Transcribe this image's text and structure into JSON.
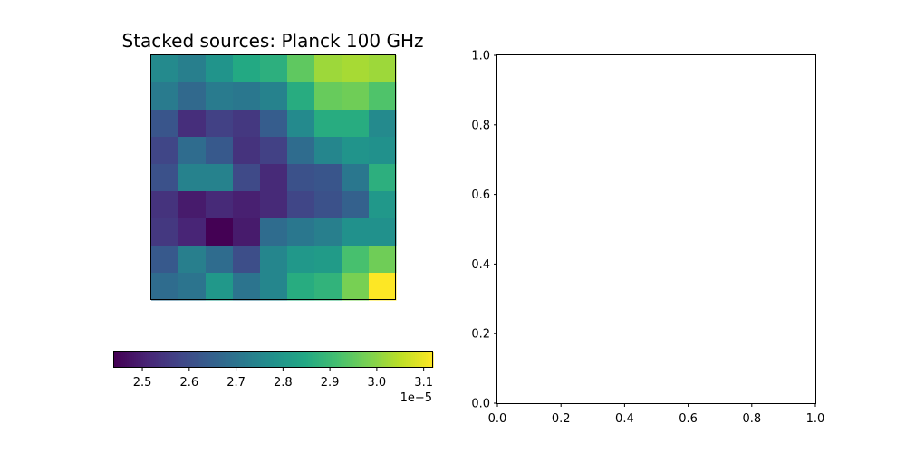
{
  "chart_data": [
    {
      "type": "heatmap",
      "title": "Stacked sources: Planck 100 GHz",
      "rows": 9,
      "cols": 9,
      "values": [
        [
          2.76,
          2.73,
          2.79,
          2.85,
          2.87,
          2.95,
          3.02,
          3.03,
          3.02
        ],
        [
          2.72,
          2.67,
          2.72,
          2.71,
          2.74,
          2.86,
          2.96,
          2.97,
          2.93
        ],
        [
          2.62,
          2.53,
          2.57,
          2.55,
          2.64,
          2.76,
          2.86,
          2.86,
          2.76
        ],
        [
          2.58,
          2.68,
          2.63,
          2.54,
          2.57,
          2.68,
          2.75,
          2.79,
          2.78
        ],
        [
          2.61,
          2.74,
          2.74,
          2.59,
          2.52,
          2.61,
          2.62,
          2.71,
          2.87
        ],
        [
          2.54,
          2.49,
          2.52,
          2.5,
          2.52,
          2.58,
          2.61,
          2.65,
          2.8
        ],
        [
          2.55,
          2.51,
          2.44,
          2.49,
          2.68,
          2.71,
          2.73,
          2.78,
          2.78
        ],
        [
          2.63,
          2.73,
          2.68,
          2.6,
          2.75,
          2.8,
          2.81,
          2.92,
          2.97
        ],
        [
          2.68,
          2.7,
          2.8,
          2.7,
          2.75,
          2.86,
          2.88,
          2.98,
          3.12
        ]
      ],
      "value_scale": "1e-5",
      "colorbar": {
        "orientation": "horizontal",
        "colormap": "viridis",
        "range": [
          2.44,
          3.12
        ],
        "ticks": [
          "2.5",
          "2.6",
          "2.7",
          "2.8",
          "2.9",
          "3.0",
          "3.1"
        ],
        "offset_label": "1e−5"
      },
      "axes_ticks_visible": false
    },
    {
      "type": "scatter",
      "title": "",
      "xlim": [
        0,
        1
      ],
      "ylim": [
        0,
        1
      ],
      "xticks": [
        "0.0",
        "0.2",
        "0.4",
        "0.6",
        "0.8",
        "1.0"
      ],
      "yticks": [
        "0.0",
        "0.2",
        "0.4",
        "0.6",
        "0.8",
        "1.0"
      ],
      "points": []
    }
  ]
}
